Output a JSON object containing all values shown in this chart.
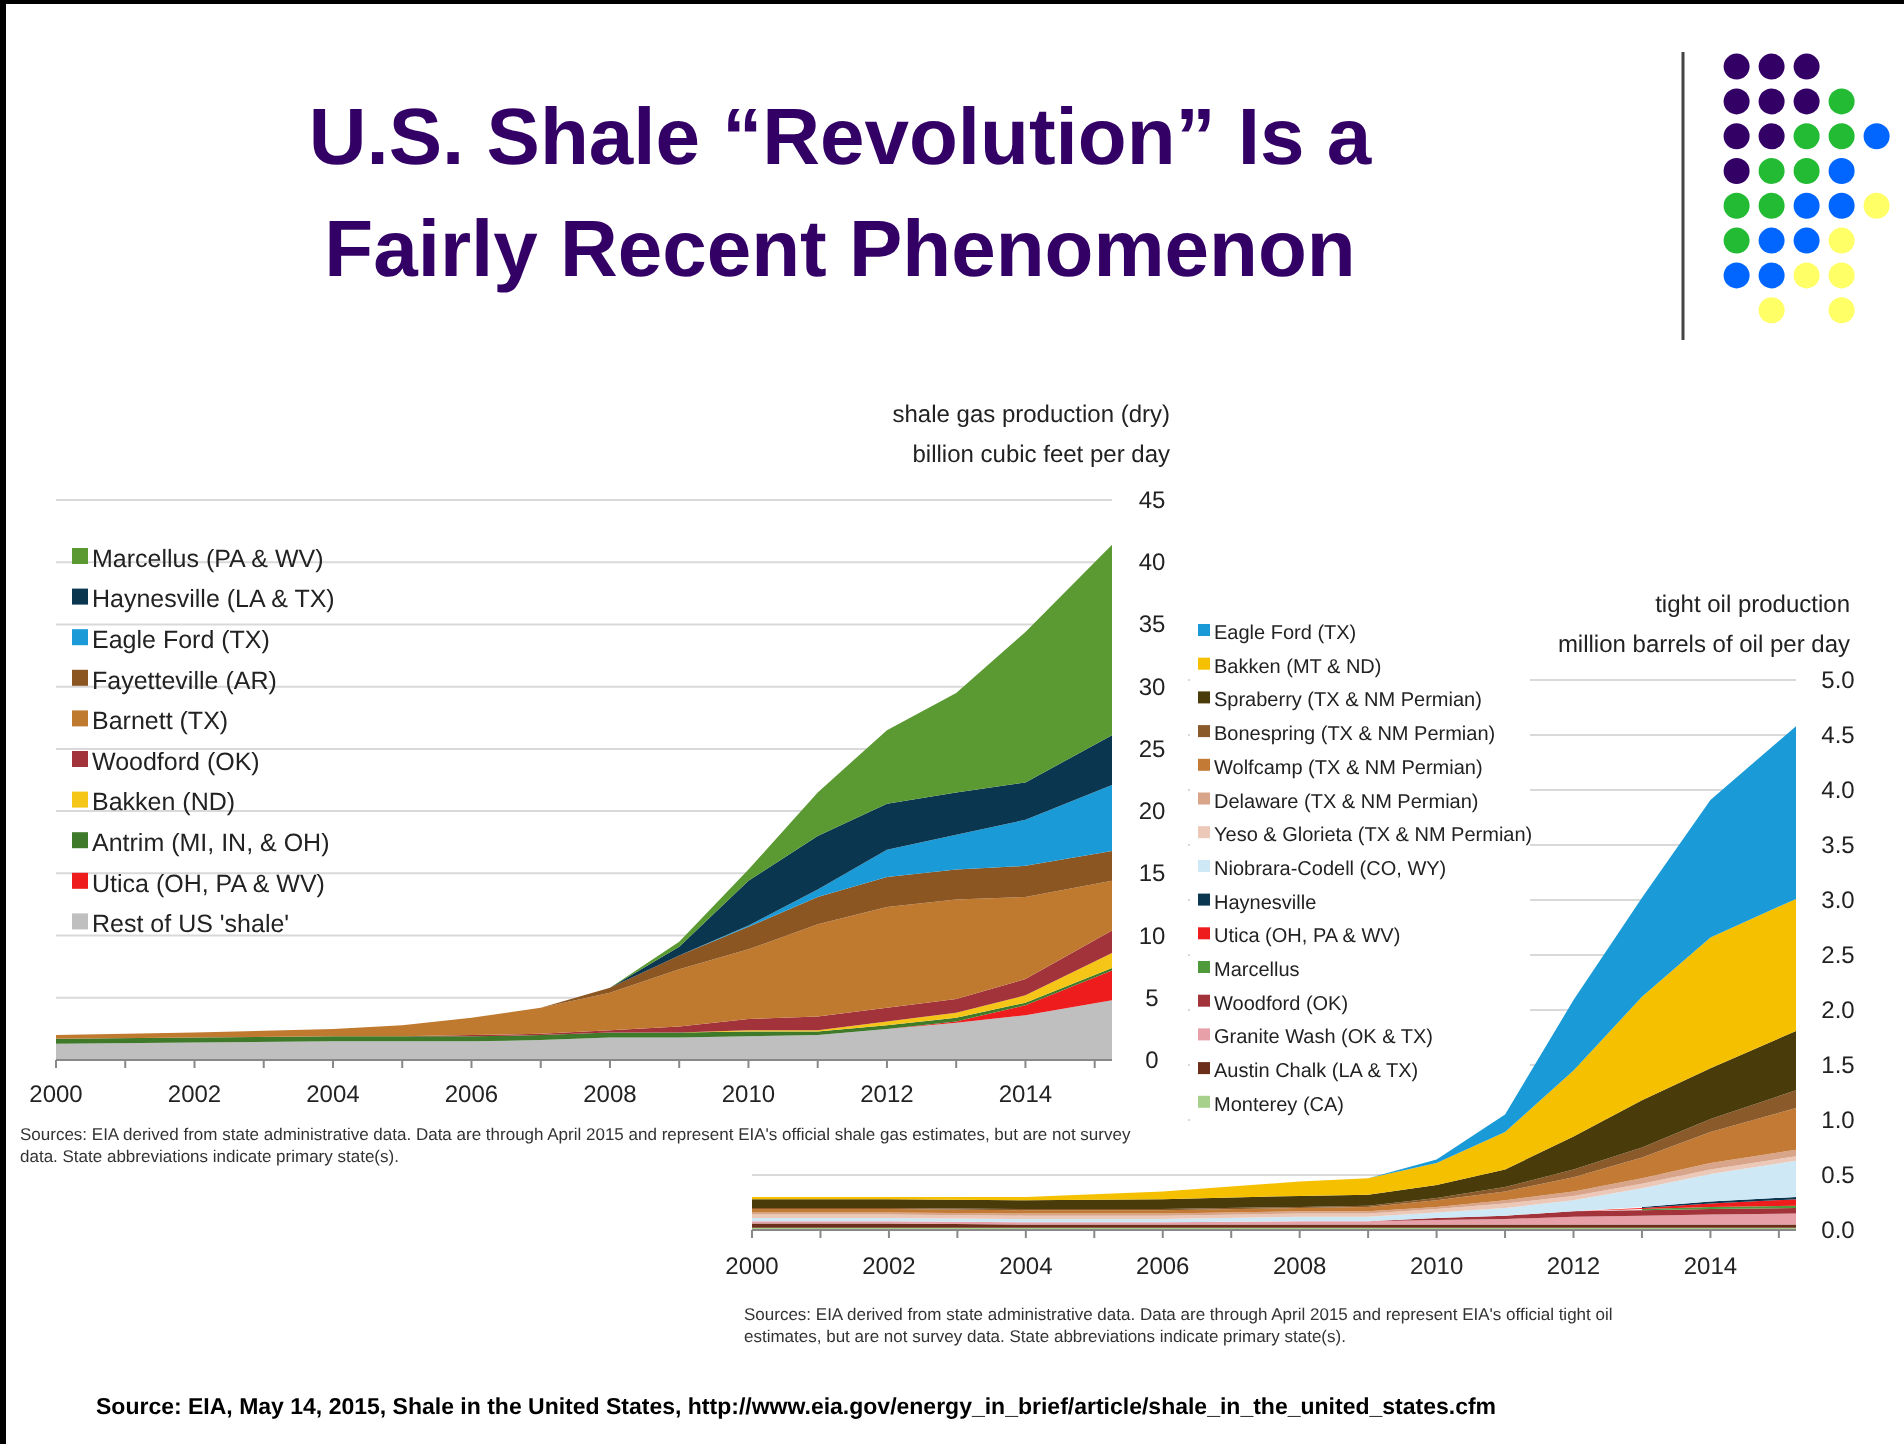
{
  "chart_data": [
    {
      "type": "area",
      "title": "U.S. Shale “Revolution” Is a Fairly Recent Phenomenon",
      "ylabel": "shale gas production (dry)\nbillion cubic feet per day",
      "stacked": true,
      "grid": "y",
      "legend": "top left",
      "x": [
        2000,
        2002,
        2004,
        2005,
        2006,
        2007,
        2008,
        2009,
        2010,
        2011,
        2012,
        2013,
        2014,
        2015.25
      ],
      "xlim": [
        2000,
        2015.25
      ],
      "ylim": [
        0,
        45
      ],
      "xticks": [
        2000,
        {
          "value": 2001,
          "label": null
        },
        2002,
        {
          "value": 2003,
          "label": null
        },
        2004,
        {
          "value": 2005,
          "label": null
        },
        2006,
        {
          "value": 2007,
          "label": null
        },
        2008,
        {
          "value": 2009,
          "label": null
        },
        2010,
        {
          "value": 2011,
          "label": null
        },
        2012,
        {
          "value": 2013,
          "label": null
        },
        2014,
        {
          "value": 2015,
          "label": null
        }
      ],
      "yticks": [
        0,
        5,
        10,
        15,
        20,
        25,
        30,
        35,
        40,
        45
      ],
      "series": [
        {
          "name": "Rest of US 'shale'",
          "color": "#bfbfbf",
          "values": [
            1.3,
            1.4,
            1.5,
            1.5,
            1.5,
            1.6,
            1.8,
            1.8,
            1.9,
            2.0,
            2.5,
            3.0,
            3.6,
            4.8
          ]
        },
        {
          "name": "Utica (OH, PA & WV)",
          "color": "#ee1c1c",
          "values": [
            0,
            0,
            0,
            0,
            0,
            0,
            0,
            0,
            0,
            0,
            0,
            0.1,
            0.8,
            2.4
          ]
        },
        {
          "name": "Antrim (MI, IN, & OH)",
          "color": "#3f7a2a",
          "values": [
            0.4,
            0.4,
            0.4,
            0.4,
            0.4,
            0.4,
            0.4,
            0.4,
            0.4,
            0.3,
            0.3,
            0.3,
            0.2,
            0.2
          ]
        },
        {
          "name": "Bakken (ND)",
          "color": "#f5c518",
          "values": [
            0,
            0,
            0,
            0,
            0,
            0,
            0,
            0,
            0.1,
            0.1,
            0.3,
            0.4,
            0.6,
            1.2
          ]
        },
        {
          "name": "Woodford (OK)",
          "color": "#a3333a",
          "values": [
            0,
            0,
            0,
            0,
            0.1,
            0.1,
            0.2,
            0.5,
            0.9,
            1.1,
            1.1,
            1.1,
            1.3,
            1.8
          ]
        },
        {
          "name": "Barnett (TX)",
          "color": "#c07a30",
          "values": [
            0.3,
            0.4,
            0.6,
            0.9,
            1.4,
            2.1,
            3.0,
            4.6,
            5.6,
            7.4,
            8.1,
            8.0,
            6.6,
            4.0
          ]
        },
        {
          "name": "Fayetteville (AR)",
          "color": "#8c5623",
          "values": [
            0,
            0,
            0,
            0,
            0,
            0,
            0.4,
            1.1,
            1.8,
            2.2,
            2.4,
            2.4,
            2.5,
            2.4
          ]
        },
        {
          "name": "Eagle Ford (TX)",
          "color": "#1a9bd7",
          "values": [
            0,
            0,
            0,
            0,
            0,
            0,
            0,
            0,
            0.1,
            0.6,
            2.2,
            2.8,
            3.7,
            5.3
          ]
        },
        {
          "name": "Haynesville (LA & TX)",
          "color": "#0b3650",
          "values": [
            0,
            0,
            0,
            0,
            0,
            0,
            0,
            0.7,
            3.6,
            4.3,
            3.7,
            3.4,
            3.0,
            4.0
          ]
        },
        {
          "name": "Marcellus (PA & WV)",
          "color": "#5b9a32",
          "values": [
            0,
            0,
            0,
            0,
            0,
            0,
            0,
            0.4,
            0.9,
            3.5,
            5.9,
            8.0,
            12.1,
            15.3
          ]
        }
      ],
      "annotations": [
        "Sources: EIA derived from state administrative data. Data are through April 2015  and represent EIA's official shale gas estimates, but are not survey data. State abbreviations indicate primary state(s)."
      ]
    },
    {
      "type": "area",
      "ylabel": "tight oil production\nmillion barrels of oil per day",
      "stacked": true,
      "grid": "y",
      "x": [
        2000,
        2002,
        2004,
        2006,
        2008,
        2009,
        2010,
        2011,
        2012,
        2013,
        2014,
        2015.25
      ],
      "xlim": [
        2000,
        2015.25
      ],
      "ylim": [
        0,
        5
      ],
      "xticks": [
        2000,
        {
          "value": 2001,
          "label": null
        },
        2002,
        {
          "value": 2003,
          "label": null
        },
        2004,
        {
          "value": 2005,
          "label": null
        },
        2006,
        {
          "value": 2007,
          "label": null
        },
        2008,
        {
          "value": 2009,
          "label": null
        },
        2010,
        {
          "value": 2011,
          "label": null
        },
        2012,
        {
          "value": 2013,
          "label": null
        },
        2014,
        {
          "value": 2015,
          "label": null
        }
      ],
      "legend": "top",
      "yticks": [
        {
          "value": 0,
          "label": "0.0"
        },
        {
          "value": 0.5,
          "label": "0.5"
        },
        {
          "value": 1,
          "label": "1.0"
        },
        {
          "value": 1.5,
          "label": "1.5"
        },
        {
          "value": 2,
          "label": "2.0"
        },
        {
          "value": 2.5,
          "label": "2.5"
        },
        {
          "value": 3,
          "label": "3.0"
        },
        {
          "value": 3.5,
          "label": "3.5"
        },
        {
          "value": 4,
          "label": "4.0"
        },
        {
          "value": 4.5,
          "label": "4.5"
        },
        {
          "value": 5,
          "label": "5.0"
        }
      ],
      "series": [
        {
          "name": "Monterey (CA)",
          "color": "#a8d08d",
          "values": [
            0.02,
            0.02,
            0.02,
            0.02,
            0.02,
            0.02,
            0.02,
            0.02,
            0.02,
            0.02,
            0.02,
            0.02
          ]
        },
        {
          "name": "Austin Chalk (LA & TX)",
          "color": "#6b2e1a",
          "values": [
            0.04,
            0.04,
            0.03,
            0.03,
            0.03,
            0.03,
            0.03,
            0.03,
            0.03,
            0.03,
            0.03,
            0.03
          ]
        },
        {
          "name": "Granite Wash (OK & TX)",
          "color": "#e8a0a8",
          "values": [
            0.02,
            0.02,
            0.02,
            0.02,
            0.03,
            0.03,
            0.04,
            0.05,
            0.07,
            0.08,
            0.09,
            0.1
          ]
        },
        {
          "name": "Woodford (OK)",
          "color": "#a3333a",
          "values": [
            0,
            0,
            0,
            0,
            0,
            0,
            0.02,
            0.03,
            0.05,
            0.05,
            0.05,
            0.05
          ]
        },
        {
          "name": "Marcellus",
          "color": "#4f9a3a",
          "values": [
            null,
            null,
            null,
            null,
            null,
            null,
            null,
            null,
            null,
            0.01,
            0.02,
            0.02
          ]
        },
        {
          "name": "Utica (OH, PA & WV)",
          "color": "#ee1c1c",
          "values": [
            0,
            0,
            0,
            0,
            0,
            0,
            0,
            0,
            0,
            0.01,
            0.03,
            0.06
          ]
        },
        {
          "name": "Haynesville",
          "color": "#0b3650",
          "values": [
            null,
            null,
            null,
            null,
            null,
            null,
            null,
            null,
            null,
            0.01,
            0.02,
            0.02
          ]
        },
        {
          "name": "Niobrara-Codell (CO, WY)",
          "color": "#cfe8f5",
          "values": [
            0.03,
            0.03,
            0.03,
            0.03,
            0.04,
            0.04,
            0.05,
            0.07,
            0.1,
            0.17,
            0.25,
            0.33
          ]
        },
        {
          "name": "Yeso & Glorieta (TX & NM Permian)",
          "color": "#ecc8b8",
          "values": [
            0.03,
            0.03,
            0.03,
            0.03,
            0.03,
            0.03,
            0.03,
            0.04,
            0.04,
            0.04,
            0.04,
            0.04
          ]
        },
        {
          "name": "Delaware (TX & NM Permian)",
          "color": "#d9a58a",
          "values": [
            0.02,
            0.02,
            0.02,
            0.02,
            0.02,
            0.02,
            0.02,
            0.03,
            0.04,
            0.05,
            0.06,
            0.06
          ]
        },
        {
          "name": "Wolfcamp (TX & NM Permian)",
          "color": "#c27a35",
          "values": [
            0.03,
            0.03,
            0.03,
            0.03,
            0.03,
            0.04,
            0.06,
            0.08,
            0.13,
            0.19,
            0.28,
            0.38
          ]
        },
        {
          "name": "Bonespring (TX & NM Permian)",
          "color": "#8a5a2b",
          "values": [
            0.01,
            0.01,
            0.01,
            0.01,
            0.01,
            0.01,
            0.02,
            0.04,
            0.07,
            0.09,
            0.12,
            0.16
          ]
        },
        {
          "name": "Spraberry (TX & NM Permian)",
          "color": "#4a3b0a",
          "values": [
            0.08,
            0.08,
            0.08,
            0.09,
            0.1,
            0.1,
            0.12,
            0.16,
            0.3,
            0.43,
            0.46,
            0.54
          ]
        },
        {
          "name": "Bakken (MT & ND)",
          "color": "#f5c000",
          "values": [
            0.02,
            0.02,
            0.03,
            0.07,
            0.13,
            0.15,
            0.2,
            0.34,
            0.6,
            0.94,
            1.19,
            1.2
          ]
        },
        {
          "name": "Eagle Ford (TX)",
          "color": "#1a9bd7",
          "values": [
            0,
            0,
            0,
            0,
            0,
            0,
            0.03,
            0.16,
            0.64,
            0.9,
            1.25,
            1.57
          ]
        }
      ],
      "annotations": [
        "Sources: EIA derived from state administrative data. Data are through April 2015  and represent EIA's official tight oil estimates, but are not survey data. State abbreviations indicate primary state(s).",
        "Source:  EIA, May 14, 2015, Shale in the United States, http://www.eia.gov/energy_in_brief/article/shale_in_the_united_states.cfm"
      ]
    }
  ]
}
